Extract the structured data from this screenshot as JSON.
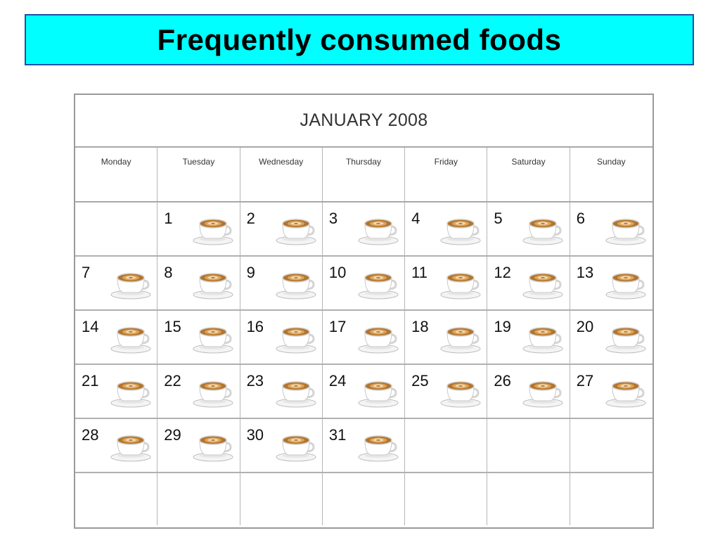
{
  "title": "Frequently consumed foods",
  "calendar": {
    "month": "JANUARY 2008",
    "days": [
      "Monday",
      "Tuesday",
      "Wednesday",
      "Thursday",
      "Friday",
      "Saturday",
      "Sunday"
    ],
    "weeks": [
      [
        "",
        "1",
        "2",
        "3",
        "4",
        "5",
        "6"
      ],
      [
        "7",
        "8",
        "9",
        "10",
        "11",
        "12",
        "13"
      ],
      [
        "14",
        "15",
        "16",
        "17",
        "18",
        "19",
        "20"
      ],
      [
        "21",
        "22",
        "23",
        "24",
        "25",
        "26",
        "27"
      ],
      [
        "28",
        "29",
        "30",
        "31",
        "",
        "",
        ""
      ],
      [
        "",
        "",
        "",
        "",
        "",
        "",
        ""
      ]
    ],
    "entry_icon": "coffee-cup-icon"
  },
  "colors": {
    "title_background": "#00ffff",
    "title_border": "#1f4fa8",
    "grid_lines": "#a8a8a8",
    "coffee": "#b5742a"
  }
}
